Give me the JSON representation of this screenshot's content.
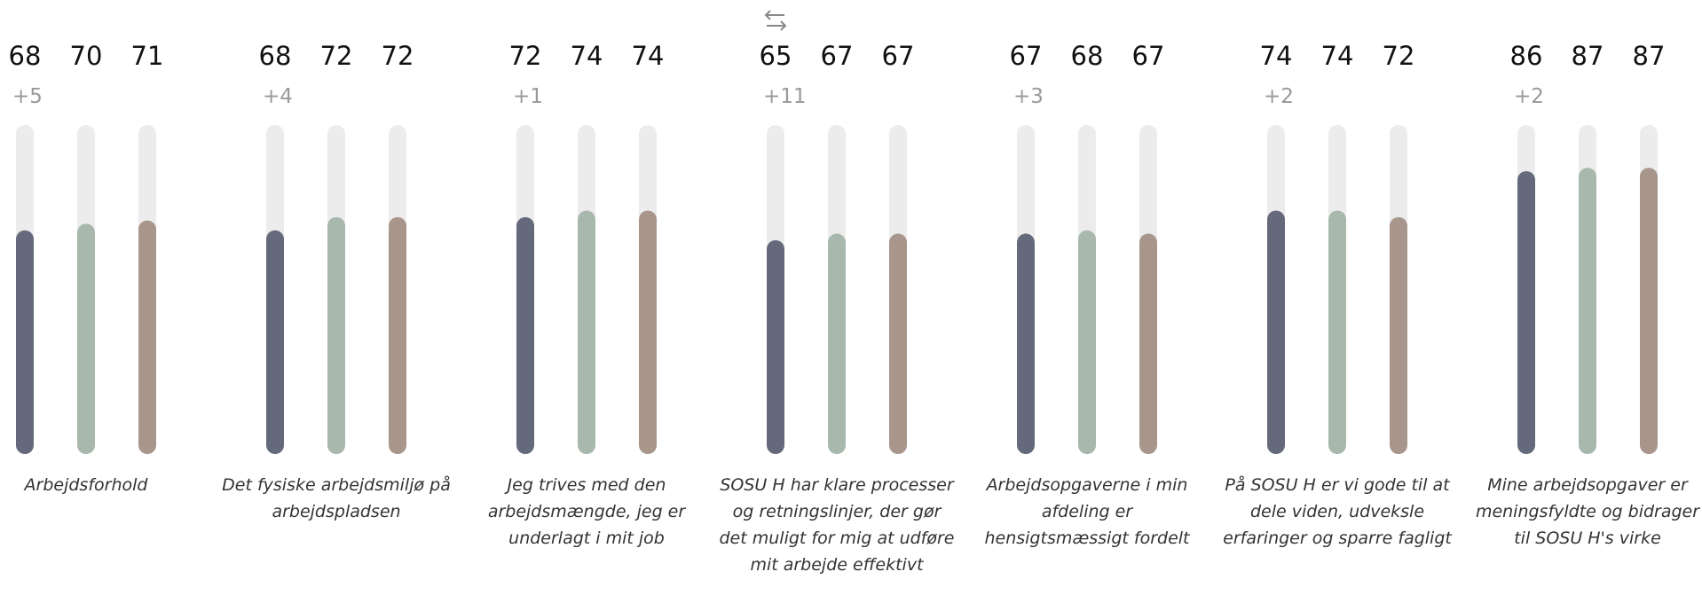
{
  "chart_data": {
    "type": "bar",
    "ylim": [
      0,
      100
    ],
    "colors": [
      "#646a7b",
      "#a9b8ac",
      "#a8958b"
    ],
    "track_color": "#ececec",
    "groups": [
      {
        "label": "Arbejdsforhold",
        "values": [
          68,
          70,
          71
        ],
        "delta": "+5"
      },
      {
        "label": "Det fysiske arbejdsmiljø på arbejdspladsen",
        "values": [
          68,
          72,
          72
        ],
        "delta": "+4"
      },
      {
        "label": "Jeg trives med den arbejdsmængde, jeg er underlagt i mit job",
        "values": [
          72,
          74,
          74
        ],
        "delta": "+1"
      },
      {
        "label": "SOSU H har klare processer og retningslinjer, der gør det muligt for mig at udføre mit arbejde effektivt",
        "values": [
          65,
          67,
          67
        ],
        "delta": "+11"
      },
      {
        "label": "Arbejdsopgaverne i min afdeling er hensigtsmæssigt fordelt",
        "values": [
          67,
          68,
          67
        ],
        "delta": "+3"
      },
      {
        "label": "På SOSU H er vi gode til at dele viden, udveksle erfaringer og sparre fagligt",
        "values": [
          74,
          74,
          72
        ],
        "delta": "+2"
      },
      {
        "label": "Mine arbejdsopgaver er meningsfyldte og bidrager til SOSU H's virke",
        "values": [
          86,
          87,
          87
        ],
        "delta": "+2"
      }
    ]
  }
}
